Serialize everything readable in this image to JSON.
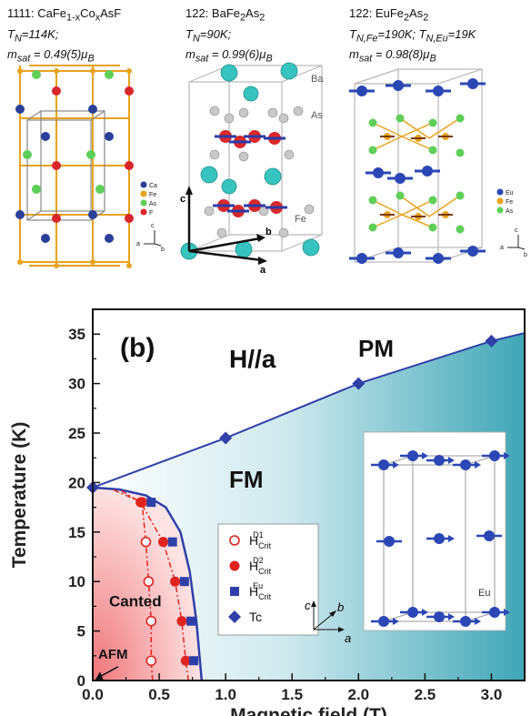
{
  "top_panel": {
    "structures": [
      {
        "line1": "1111: CaFe",
        "line1_sub": "1-x",
        "line1_mid": "Co",
        "line1_sub2": "x",
        "line1_end": "AsF",
        "line2": "T",
        "line2_sub": "N",
        "line2_end": "=114K;",
        "line3": "m",
        "line3_sub": "sat",
        "line3_end": " = 0.49(5)μ",
        "line3_sub2": "B"
      },
      {
        "line1": "122:  BaFe",
        "line1_sub": "2",
        "line1_mid": "As",
        "line1_sub2": "2",
        "line1_end": "",
        "line2": "T",
        "line2_sub": "N",
        "line2_end": "=90K;",
        "line3": "m",
        "line3_sub": "sat",
        "line3_end": " = 0.99(6)μ",
        "line3_sub2": "B"
      },
      {
        "line1": "122:  EuFe",
        "line1_sub": "2",
        "line1_mid": "As",
        "line1_sub2": "2",
        "line1_end": "",
        "line2": "T",
        "line2_sub": "N,Fe",
        "line2_end": "=190K; T",
        "line2_sub3": "N,Eu",
        "line2_end3": "=19K",
        "line3": "m",
        "line3_sub": "sat",
        "line3_end": " = 0.98(8)μ",
        "line3_sub2": "B"
      }
    ],
    "legend1": [
      "Ca",
      "Fe",
      "As",
      "F"
    ],
    "legend3": [
      "Eu",
      "Fe",
      "As"
    ],
    "labels_ba": {
      "ba": "Ba",
      "as": "As",
      "fe": "Fe",
      "a": "a",
      "b": "b",
      "c": "c"
    },
    "axes_small": {
      "c": "c",
      "a": "a",
      "b": "b"
    },
    "colors": {
      "ca": "#2a3f9a",
      "fe": "#e8a21c",
      "as": "#5ecf57",
      "f": "#d8262a",
      "ba": "#37c4c0",
      "eu": "#2b47b5"
    }
  },
  "chart_data": {
    "type": "scatter",
    "panel_label": "(b)",
    "annotation_field": "H//a",
    "xlabel": "Magnetic field (T)",
    "ylabel": "Temperature (K)",
    "xlim": [
      0.0,
      3.25
    ],
    "ylim": [
      0,
      37.5
    ],
    "xticks": [
      "0.0",
      "0.5",
      "1.0",
      "1.5",
      "2.0",
      "2.5",
      "3.0"
    ],
    "yticks": [
      "0",
      "5",
      "10",
      "15",
      "20",
      "25",
      "30",
      "35"
    ],
    "regions": {
      "pm": "PM",
      "fm": "FM",
      "canted": "Canted",
      "afm": "AFM"
    },
    "series": [
      {
        "name": "H_Crit^D1",
        "name_main": "H",
        "name_sub": "Crit",
        "name_sup": "D1",
        "marker": "open-circle",
        "color": "#e0231f",
        "x": [
          0.44,
          0.44,
          0.42,
          0.4,
          0.37
        ],
        "y": [
          2,
          6,
          10,
          14,
          18
        ]
      },
      {
        "name": "H_Crit^D2",
        "name_main": "H",
        "name_sub": "Crit",
        "name_sup": "D2",
        "marker": "filled-circle",
        "color": "#e0231f",
        "x": [
          0.7,
          0.67,
          0.62,
          0.53,
          0.36
        ],
        "y": [
          2,
          6,
          10,
          14,
          18
        ]
      },
      {
        "name": "H_Crit^Eu",
        "name_main": "H",
        "name_sub": "Crit",
        "name_sup": "Eu",
        "marker": "filled-square",
        "color": "#2e3fa8",
        "x": [
          0.76,
          0.74,
          0.69,
          0.6,
          0.44
        ],
        "y": [
          2,
          6,
          10,
          14,
          18
        ]
      },
      {
        "name": "Tc",
        "name_main": "Tc",
        "marker": "filled-diamond",
        "color": "#2e3fa8",
        "x": [
          0.0,
          1.0,
          2.0,
          3.0
        ],
        "y": [
          19.5,
          24.5,
          30.0,
          34.3
        ]
      }
    ],
    "inset": {
      "label": "Eu",
      "axes": {
        "a": "a",
        "b": "b",
        "c": "c"
      }
    },
    "colors": {
      "line": "#2e3fa8",
      "afm_fill": "#f0888a",
      "fm_fill": "#e3f3f6",
      "pm_fill": "#3fa6b6"
    }
  }
}
